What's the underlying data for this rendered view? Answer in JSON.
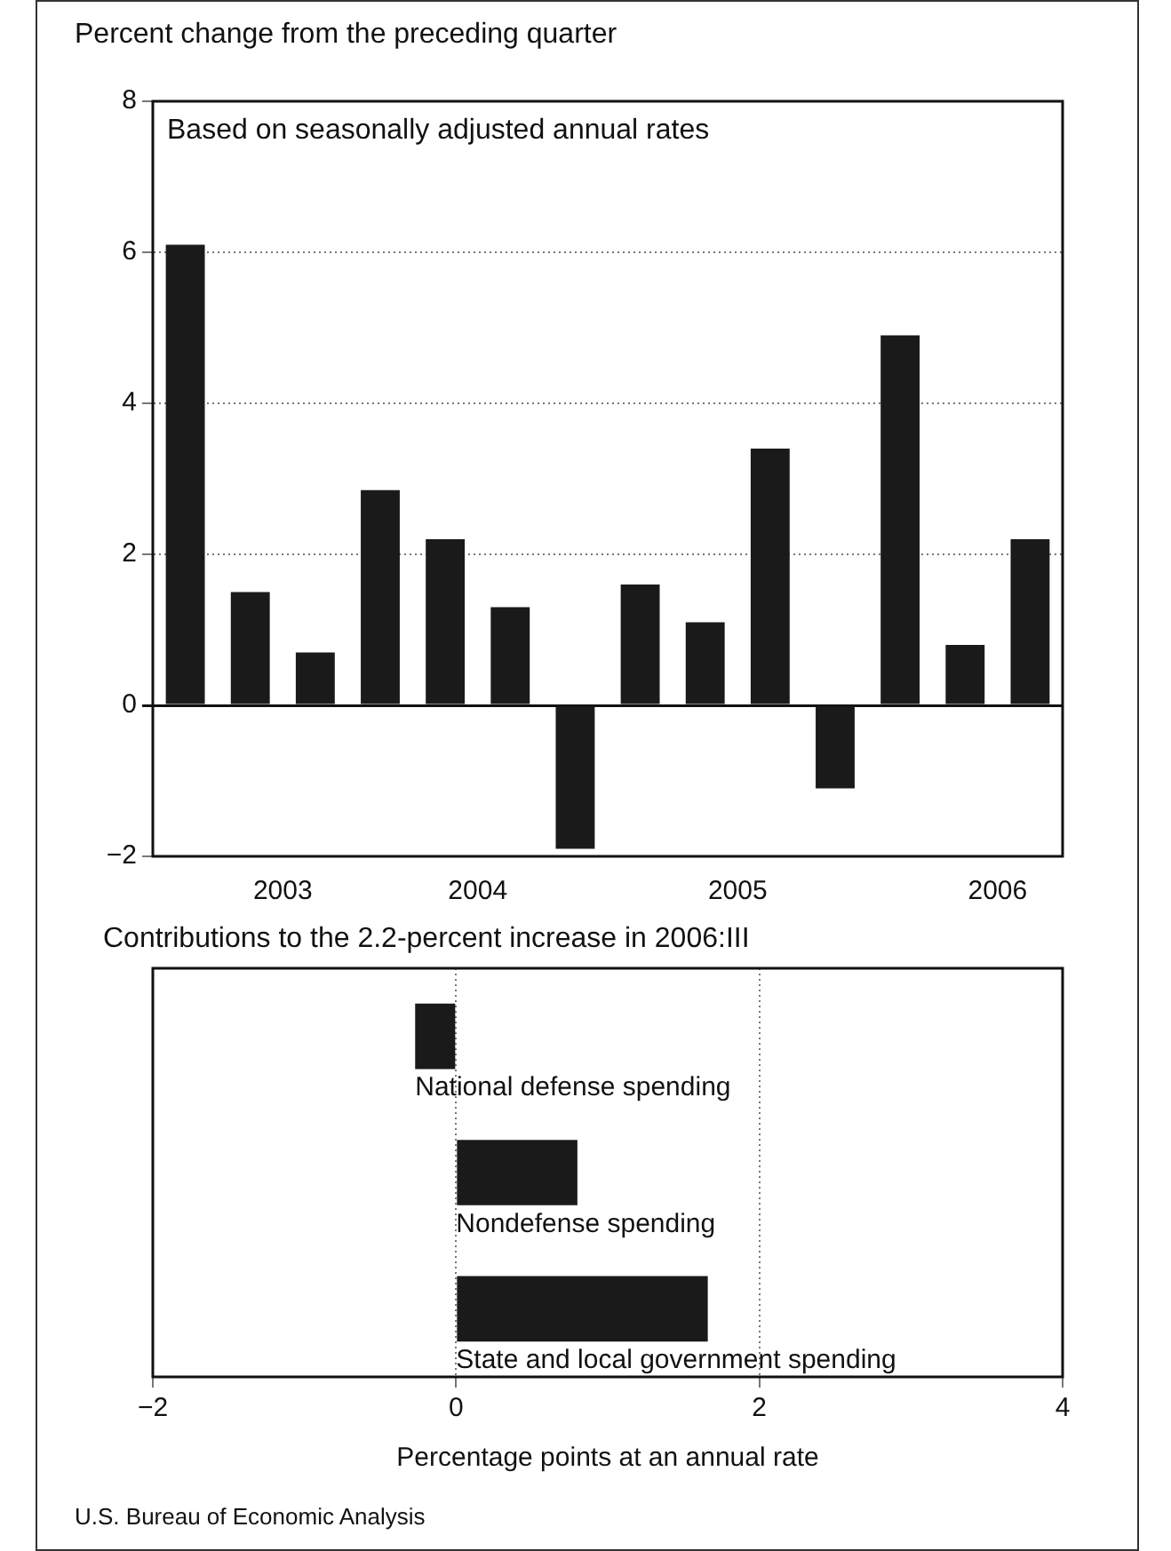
{
  "chart_data": [
    {
      "type": "bar",
      "title": "Percent change from the preceding quarter",
      "subtitle": "Based on seasonally adjusted annual rates",
      "categories": [
        null,
        null,
        "2003",
        null,
        null,
        "2004",
        null,
        null,
        null,
        "2005",
        null,
        null,
        null,
        "2006"
      ],
      "values": [
        6.1,
        1.5,
        0.7,
        2.85,
        2.2,
        1.3,
        -1.9,
        1.6,
        1.1,
        3.4,
        -1.1,
        4.9,
        0.8,
        2.2
      ],
      "color": "#1a1a1a",
      "ylim": [
        -2,
        8
      ],
      "yticks": [
        -2,
        0,
        2,
        4,
        6,
        8
      ],
      "grid": "y"
    },
    {
      "type": "bar",
      "orientation": "horizontal",
      "title": "Contributions to the 2.2-percent increase in 2006:III",
      "xlabel": "Percentage points at an annual rate",
      "categories": [
        "National defense spending",
        "Nondefense spending",
        "State and local government spending"
      ],
      "values": [
        -0.27,
        0.8,
        1.66
      ],
      "color": "#1a1a1a",
      "xlim": [
        -2,
        4
      ],
      "xticks": [
        -2,
        0,
        2,
        4
      ],
      "grid": "x",
      "annotations": [
        "U.S. Bureau of Economic Analysis"
      ]
    }
  ]
}
